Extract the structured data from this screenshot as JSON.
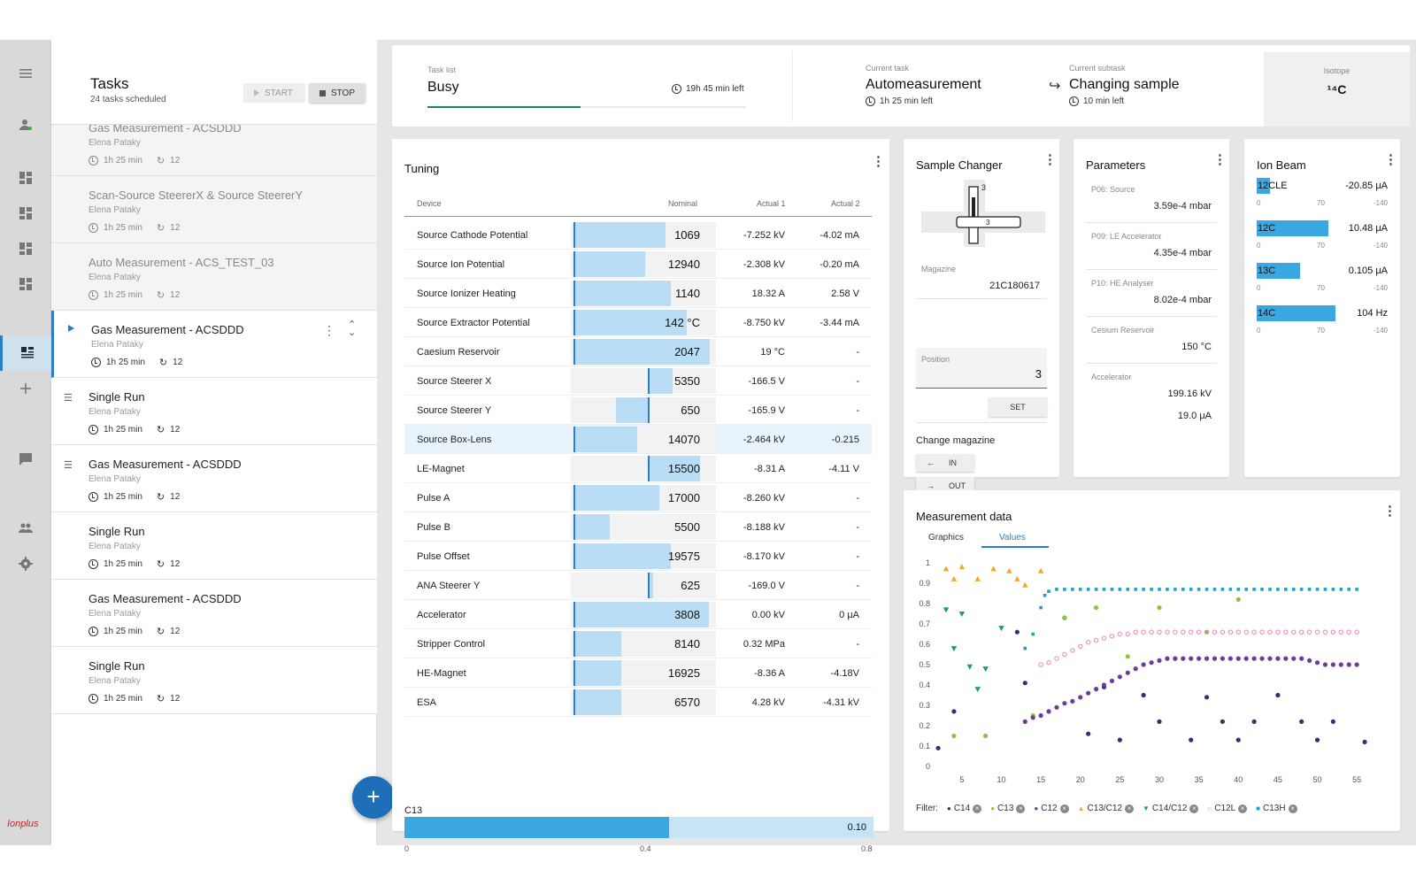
{
  "rail": {
    "logo": "Ionplus"
  },
  "tasks": {
    "title": "Tasks",
    "subtitle": "24 tasks scheduled",
    "start_label": "START",
    "stop_label": "STOP",
    "items": [
      {
        "name": "Gas Measurement - ACSDDD",
        "user": "Elena Pataky",
        "time": "1h 25 min",
        "cycles": "12"
      },
      {
        "name": "Scan-Source SteererX & Source SteererY",
        "user": "Elena Pataky",
        "time": "1h 25 min",
        "cycles": "12"
      },
      {
        "name": "Auto Measurement - ACS_TEST_03",
        "user": "Elena Pataky",
        "time": "1h 25 min",
        "cycles": "12"
      },
      {
        "name": "Gas Measurement - ACSDDD",
        "user": "Elena Pataky",
        "time": "1h 25 min",
        "cycles": "12"
      },
      {
        "name": "Single Run",
        "user": "Elena Pataky",
        "time": "1h 25 min",
        "cycles": "12"
      },
      {
        "name": "Gas Measurement - ACSDDD",
        "user": "Elena Pataky",
        "time": "1h 25 min",
        "cycles": "12"
      },
      {
        "name": "Single Run",
        "user": "Elena Pataky",
        "time": "1h 25 min",
        "cycles": "12"
      },
      {
        "name": "Gas Measurement - ACSDDD",
        "user": "Elena Pataky",
        "time": "1h 25 min",
        "cycles": "12"
      },
      {
        "name": "Single Run",
        "user": "Elena Pataky",
        "time": "1h 25 min",
        "cycles": "12"
      }
    ]
  },
  "status": {
    "task_list_label": "Task list",
    "task_list_value": "Busy",
    "task_list_left": "19h 45 min left",
    "task_list_progress": 0.48,
    "current_task_label": "Current task",
    "current_task_value": "Automeasurement",
    "current_task_left": "1h 25 min left",
    "current_subtask_label": "Current subtask",
    "current_subtask_value": "Changing sample",
    "current_subtask_left": "10 min left",
    "isotope_label": "Isotope",
    "isotope_value": "¹⁴C"
  },
  "tuning": {
    "title": "Tuning",
    "col_device": "Device",
    "col_nominal": "Nominal",
    "col_actual1": "Actual 1",
    "col_actual2": "Actual 2",
    "rows": [
      {
        "device": "Source Cathode Potential",
        "nominal": "1069",
        "a1": "-7.252 kV",
        "a2": "-4.02 mA",
        "fill": [
          0.02,
          0.65
        ],
        "mark": 0.02
      },
      {
        "device": "Source Ion Potential",
        "nominal": "12940",
        "a1": "-2.308 kV",
        "a2": "-0.20 mA",
        "fill": [
          0.02,
          0.51
        ],
        "mark": 0.02
      },
      {
        "device": "Source Ionizer Heating",
        "nominal": "1140",
        "a1": "18.32 A",
        "a2": "2.58 V",
        "fill": [
          0.02,
          0.69
        ],
        "mark": 0.02
      },
      {
        "device": "Source Extractor Potential",
        "nominal": "142 °C",
        "a1": "-8.750 kV",
        "a2": "-3.44 mA",
        "fill": [
          0.02,
          0.8
        ],
        "mark": 0.02
      },
      {
        "device": "Caesium Reservoir",
        "nominal": "2047",
        "a1": "19 °C",
        "a2": "-",
        "fill": [
          0.02,
          0.96
        ],
        "mark": 0.02
      },
      {
        "device": "Source Steerer X",
        "nominal": "5350",
        "a1": "-166.5 V",
        "a2": "-",
        "fill": [
          0.53,
          0.7
        ],
        "mark": 0.53
      },
      {
        "device": "Source Steerer Y",
        "nominal": "650",
        "a1": "-165.9 V",
        "a2": "-",
        "fill": [
          0.31,
          0.53
        ],
        "mark": 0.53
      },
      {
        "device": "Source Box-Lens",
        "nominal": "14070",
        "a1": "-2.464 kV",
        "a2": "-0.215",
        "fill": [
          0.02,
          0.46
        ],
        "mark": 0.02,
        "highlight": true
      },
      {
        "device": "LE-Magnet",
        "nominal": "15500",
        "a1": "-8.31 A",
        "a2": "-4.11 V",
        "fill": [
          0.53,
          0.89
        ],
        "mark": 0.53
      },
      {
        "device": "Pulse A",
        "nominal": "17000",
        "a1": "-8.260 kV",
        "a2": "-",
        "fill": [
          0.02,
          0.61
        ],
        "mark": 0.02
      },
      {
        "device": "Pulse B",
        "nominal": "5500",
        "a1": "-8.188 kV",
        "a2": "-",
        "fill": [
          0.02,
          0.27
        ],
        "mark": 0.02
      },
      {
        "device": "Pulse Offset",
        "nominal": "19575",
        "a1": "-8.170 kV",
        "a2": "-",
        "fill": [
          0.02,
          0.69
        ],
        "mark": 0.02
      },
      {
        "device": "ANA Steerer Y",
        "nominal": "625",
        "a1": "-169.0 V",
        "a2": "-",
        "fill": [
          0.53,
          0.57
        ],
        "mark": 0.53
      },
      {
        "device": "Accelerator",
        "nominal": "3808",
        "a1": "0.00 kV",
        "a2": "0 μA",
        "fill": [
          0.02,
          0.95
        ],
        "mark": 0.02
      },
      {
        "device": "Stripper Control",
        "nominal": "8140",
        "a1": "0.32 MPa",
        "a2": "-",
        "fill": [
          0.02,
          0.35
        ],
        "mark": 0.02
      },
      {
        "device": "HE-Magnet",
        "nominal": "16925",
        "a1": "-8.36 A",
        "a2": "-4.18V",
        "fill": [
          0.02,
          0.35
        ],
        "mark": 0.02
      },
      {
        "device": "ESA",
        "nominal": "6570",
        "a1": "4.28 kV",
        "a2": "-4.31 kV",
        "fill": [
          0.02,
          0.35
        ],
        "mark": 0.02
      }
    ],
    "c13_label": "C13",
    "c13_value": "0.10",
    "c13_fraction": 0.565,
    "c13_ticks": [
      "0",
      "0.4",
      "0.8"
    ]
  },
  "sample_changer": {
    "title": "Sample Changer",
    "diagram_top_label": "3",
    "diagram_mid_label": "3",
    "magazine_label": "Magazine",
    "magazine_value": "21C180617",
    "position_label": "Position",
    "position_value": "3",
    "set_label": "SET",
    "change_label": "Change magazine",
    "in_label": "IN",
    "out_label": "OUT"
  },
  "parameters": {
    "title": "Parameters",
    "items": [
      {
        "label": "P06: Source",
        "values": [
          "3.59e-4 mbar"
        ]
      },
      {
        "label": "P09: LE Accelerator",
        "values": [
          "4.35e-4 mbar"
        ]
      },
      {
        "label": "P10: HE Analyser",
        "values": [
          "8.02e-4 mbar"
        ]
      },
      {
        "label": "Cesium Reservoir",
        "values": [
          "150 °C"
        ]
      },
      {
        "label": "Accelerator",
        "values": [
          "199.16 kV",
          "19.0 μA"
        ]
      }
    ]
  },
  "ion_beam": {
    "title": "Ion Beam",
    "items": [
      {
        "label": "12CLE",
        "value": "-20.85 μA",
        "fraction": 0.1,
        "ticks": [
          "0",
          "70",
          "-140"
        ]
      },
      {
        "label": "12C",
        "value": "10.48 μA",
        "fraction": 0.55,
        "ticks": [
          "0",
          "70",
          "-140"
        ]
      },
      {
        "label": "13C",
        "value": "0.105 μA",
        "fraction": 0.33,
        "ticks": [
          "0",
          "70",
          "-140"
        ]
      },
      {
        "label": "14C",
        "value": "104 Hz",
        "fraction": 0.6,
        "ticks": [
          "0",
          "70",
          "-140"
        ]
      }
    ]
  },
  "measurement": {
    "title": "Measurement data",
    "tab_graphics": "Graphics",
    "tab_values": "Values",
    "filter_label": "Filter:",
    "filters": [
      {
        "name": "C14",
        "marker": "●",
        "color": "#3d2c73"
      },
      {
        "name": "C13",
        "marker": "●",
        "color": "#8cc63f"
      },
      {
        "name": "C12",
        "marker": "●",
        "color": "#6a3d9a"
      },
      {
        "name": "C13/C12",
        "marker": "▲",
        "color": "#f5a623"
      },
      {
        "name": "C14/C12",
        "marker": "▼",
        "color": "#1a9c6b"
      },
      {
        "name": "C12L",
        "marker": "○",
        "color": "#e888b0"
      },
      {
        "name": "C13H",
        "marker": "■",
        "color": "#1aa3c7"
      }
    ]
  },
  "chart_data": {
    "type": "scatter",
    "xlim": [
      3,
      57
    ],
    "ylim": [
      0,
      1
    ],
    "x_ticks": [
      5,
      10,
      15,
      20,
      25,
      30,
      35,
      40,
      45,
      50,
      55
    ],
    "y_ticks": [
      0,
      0.1,
      0.2,
      0.3,
      0.4,
      0.5,
      0.6,
      0.7,
      0.8,
      0.9,
      1
    ],
    "grid": false,
    "series": [
      {
        "name": "C14",
        "color": "#3d2c73",
        "marker": "circle",
        "x": [
          2,
          4,
          12,
          13,
          18,
          21,
          23,
          25,
          28,
          30,
          34,
          36,
          38,
          40,
          42,
          45,
          48,
          50,
          52,
          56
        ],
        "y": [
          0.09,
          0.27,
          0.66,
          0.41,
          0.73,
          0.16,
          0.39,
          0.13,
          0.35,
          0.22,
          0.13,
          0.34,
          0.22,
          0.13,
          0.22,
          0.35,
          0.22,
          0.13,
          0.22,
          0.12
        ]
      },
      {
        "name": "C13",
        "color": "#8cc63f",
        "marker": "circle",
        "x": [
          4,
          8,
          14,
          18,
          22,
          26,
          30,
          32,
          36,
          40
        ],
        "y": [
          0.15,
          0.15,
          0.25,
          0.73,
          0.78,
          0.54,
          0.78,
          0.53,
          0.66,
          0.82
        ]
      },
      {
        "name": "C12",
        "color": "#6a3d9a",
        "marker": "circle",
        "x": [
          13,
          14,
          15,
          16,
          17,
          18,
          19,
          20,
          21,
          22,
          23,
          24,
          25,
          26,
          27,
          28,
          29,
          30,
          31,
          32,
          33,
          34,
          35,
          36,
          37,
          38,
          39,
          40,
          41,
          42,
          43,
          44,
          45,
          46,
          47,
          48,
          49,
          50,
          51,
          52,
          53,
          54,
          55
        ],
        "y": [
          0.22,
          0.24,
          0.25,
          0.27,
          0.29,
          0.31,
          0.32,
          0.34,
          0.36,
          0.38,
          0.4,
          0.42,
          0.44,
          0.46,
          0.48,
          0.5,
          0.51,
          0.52,
          0.53,
          0.53,
          0.53,
          0.53,
          0.53,
          0.53,
          0.53,
          0.53,
          0.53,
          0.53,
          0.53,
          0.53,
          0.53,
          0.53,
          0.53,
          0.53,
          0.53,
          0.53,
          0.52,
          0.51,
          0.5,
          0.5,
          0.5,
          0.5,
          0.5
        ]
      },
      {
        "name": "C13/C12",
        "color": "#f5a623",
        "marker": "triangle-up",
        "x": [
          3,
          4,
          5,
          7,
          9,
          11,
          12,
          13,
          15
        ],
        "y": [
          0.97,
          0.92,
          0.98,
          0.92,
          0.97,
          0.96,
          0.92,
          0.89,
          0.96
        ]
      },
      {
        "name": "C14/C12",
        "color": "#1a9c6b",
        "marker": "triangle-down",
        "x": [
          3,
          4,
          5,
          6,
          7,
          8,
          10
        ],
        "y": [
          0.77,
          0.58,
          0.75,
          0.49,
          0.38,
          0.48,
          0.68
        ]
      },
      {
        "name": "C12L",
        "color": "#e888b0",
        "marker": "ring",
        "x": [
          15,
          16,
          17,
          18,
          19,
          20,
          21,
          22,
          23,
          24,
          25,
          26,
          27,
          28,
          29,
          30,
          31,
          32,
          33,
          34,
          35,
          36,
          37,
          38,
          39,
          40,
          41,
          42,
          43,
          44,
          45,
          46,
          47,
          48,
          49,
          50,
          51,
          52,
          53,
          54,
          55
        ],
        "y": [
          0.5,
          0.51,
          0.53,
          0.55,
          0.57,
          0.59,
          0.61,
          0.62,
          0.63,
          0.64,
          0.65,
          0.65,
          0.66,
          0.66,
          0.66,
          0.66,
          0.66,
          0.66,
          0.66,
          0.66,
          0.66,
          0.66,
          0.66,
          0.66,
          0.66,
          0.66,
          0.66,
          0.66,
          0.66,
          0.66,
          0.66,
          0.66,
          0.66,
          0.66,
          0.66,
          0.66,
          0.66,
          0.66,
          0.66,
          0.66,
          0.66
        ]
      },
      {
        "name": "C13H",
        "color": "#1aa3c7",
        "marker": "square",
        "x": [
          13,
          14,
          15,
          15.5,
          16,
          17,
          18,
          19,
          20,
          21,
          22,
          23,
          24,
          25,
          26,
          27,
          28,
          29,
          30,
          31,
          32,
          33,
          34,
          35,
          36,
          37,
          38,
          39,
          40,
          41,
          42,
          43,
          44,
          45,
          46,
          47,
          48,
          49,
          50,
          51,
          52,
          53,
          54,
          55
        ],
        "y": [
          0.58,
          0.65,
          0.78,
          0.84,
          0.86,
          0.87,
          0.87,
          0.87,
          0.87,
          0.87,
          0.87,
          0.87,
          0.87,
          0.87,
          0.87,
          0.87,
          0.87,
          0.87,
          0.87,
          0.87,
          0.87,
          0.87,
          0.87,
          0.87,
          0.87,
          0.87,
          0.87,
          0.87,
          0.87,
          0.87,
          0.87,
          0.87,
          0.87,
          0.87,
          0.87,
          0.87,
          0.87,
          0.87,
          0.87,
          0.87,
          0.87,
          0.87,
          0.87,
          0.87
        ]
      }
    ]
  }
}
